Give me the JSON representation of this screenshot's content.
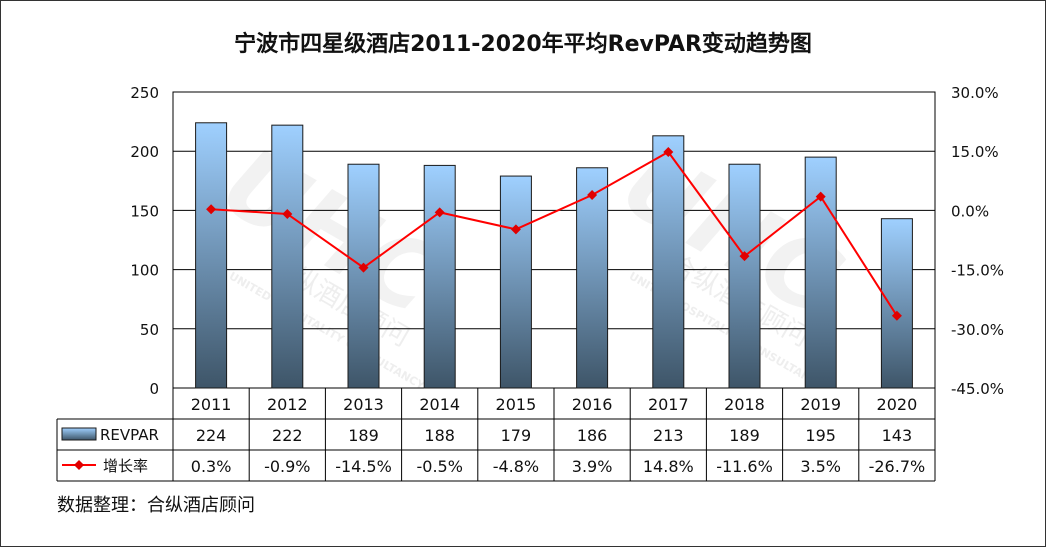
{
  "title": "宁波市四星级酒店2011-2020年平均RevPAR变动趋势图",
  "source": "数据整理：合纵酒店顾问",
  "watermark": {
    "brand": "UHC",
    "cn": "合纵酒店顾问",
    "en": "UNITED HOSPITALITY CONSULTANCY"
  },
  "colors": {
    "bar_top": "#9FD0FF",
    "bar_bottom": "#3E5568",
    "bar_border": "#1a1a1a",
    "line": "#FF0000",
    "marker": "#E00000",
    "grid": "#000000",
    "watermark": "#d9d9d9"
  },
  "chart_data": {
    "type": "bar",
    "categories": [
      "2011",
      "2012",
      "2013",
      "2014",
      "2015",
      "2016",
      "2017",
      "2018",
      "2019",
      "2020"
    ],
    "series": [
      {
        "name": "REVPAR",
        "type": "bar",
        "axis": "left",
        "values": [
          224,
          222,
          189,
          188,
          179,
          186,
          213,
          189,
          195,
          143
        ],
        "labels": [
          "224",
          "222",
          "189",
          "188",
          "179",
          "186",
          "213",
          "189",
          "195",
          "143"
        ]
      },
      {
        "name": "增长率",
        "type": "line",
        "axis": "right",
        "values": [
          0.3,
          -0.9,
          -14.5,
          -0.5,
          -4.8,
          3.9,
          14.8,
          -11.6,
          3.5,
          -26.7
        ],
        "labels": [
          "0.3%",
          "-0.9%",
          "-14.5%",
          "-0.5%",
          "-4.8%",
          "3.9%",
          "14.8%",
          "-11.6%",
          "3.5%",
          "-26.7%"
        ]
      }
    ],
    "y_left": {
      "min": 0,
      "max": 250,
      "ticks": [
        "0",
        "50",
        "100",
        "150",
        "200",
        "250"
      ]
    },
    "y_right": {
      "min": -45,
      "max": 30,
      "ticks": [
        "-45.0%",
        "-30.0%",
        "-15.0%",
        "0.0%",
        "15.0%",
        "30.0%"
      ]
    },
    "grid": true,
    "legend": "data table"
  }
}
